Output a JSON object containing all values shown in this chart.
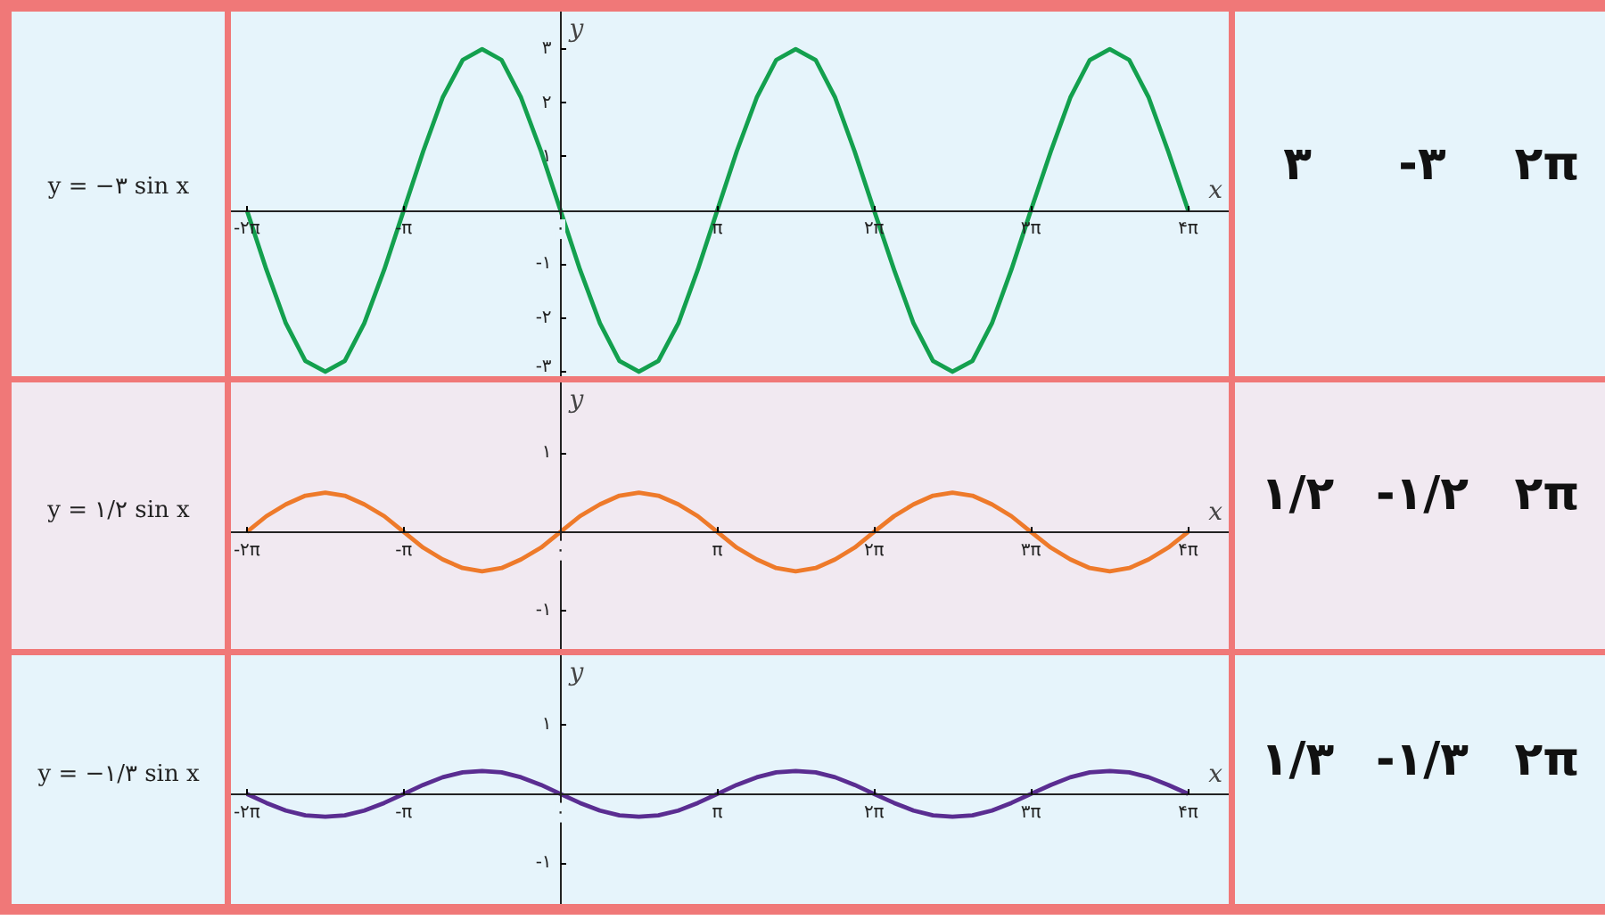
{
  "chart_data": [
    {
      "type": "line",
      "title": "y = −۳ sin x",
      "xlabel": "x",
      "ylabel": "y",
      "x": [
        -6.28,
        -5.89,
        -5.5,
        -5.11,
        -4.71,
        -4.32,
        -3.93,
        -3.53,
        -3.14,
        -2.75,
        -2.36,
        -1.96,
        -1.57,
        -1.18,
        -0.79,
        -0.39,
        0,
        0.39,
        0.79,
        1.18,
        1.57,
        1.96,
        2.36,
        2.75,
        3.14,
        3.53,
        3.93,
        4.32,
        4.71,
        5.11,
        5.5,
        5.89,
        6.28,
        6.68,
        7.07,
        7.46,
        7.85,
        8.25,
        8.64,
        9.03,
        9.42,
        9.82,
        10.21,
        10.6,
        11.0,
        11.39,
        11.78,
        12.17,
        12.57
      ],
      "series": [
        {
          "color": "#13a04e",
          "values": [
            0,
            -1.1,
            -2.1,
            -2.8,
            -3,
            -2.8,
            -2.1,
            -1.1,
            0,
            1.1,
            2.1,
            2.8,
            3,
            2.8,
            2.1,
            1.1,
            0,
            -1.1,
            -2.1,
            -2.8,
            -3,
            -2.8,
            -2.1,
            -1.1,
            0,
            1.1,
            2.1,
            2.8,
            3,
            2.8,
            2.1,
            1.1,
            0,
            -1.1,
            -2.1,
            -2.8,
            -3,
            -2.8,
            -2.1,
            -1.1,
            0,
            1.1,
            2.1,
            2.8,
            3,
            2.8,
            2.1,
            1.1,
            0
          ]
        }
      ],
      "xlim": [
        -6.6,
        13.4
      ],
      "ylim": [
        -3.1,
        3.7
      ],
      "xticks": [
        {
          "value": -6.28,
          "label": "-۲π"
        },
        {
          "value": -3.14,
          "label": "-π"
        },
        {
          "value": 0,
          "label": "۰"
        },
        {
          "value": 3.14,
          "label": "π"
        },
        {
          "value": 6.28,
          "label": "۲π"
        },
        {
          "value": 9.42,
          "label": "۳π"
        },
        {
          "value": 12.57,
          "label": "۴π"
        }
      ],
      "yticks": [
        {
          "value": -3,
          "label": "-۳"
        },
        {
          "value": -2,
          "label": "-۲"
        },
        {
          "value": -1,
          "label": "-۱"
        },
        {
          "value": 1,
          "label": "۱"
        },
        {
          "value": 2,
          "label": "۲"
        },
        {
          "value": 3,
          "label": "۳"
        }
      ]
    },
    {
      "type": "other",
      "annotations": [
        "۳",
        "-۳",
        "۲π"
      ]
    },
    {
      "type": "line",
      "title": "y = ۱/۲ sin x",
      "xlabel": "x",
      "ylabel": "y",
      "x": [
        -6.28,
        -5.89,
        -5.5,
        -5.11,
        -4.71,
        -4.32,
        -3.93,
        -3.53,
        -3.14,
        -2.75,
        -2.36,
        -1.96,
        -1.57,
        -1.18,
        -0.79,
        -0.39,
        0,
        0.39,
        0.79,
        1.18,
        1.57,
        1.96,
        2.36,
        2.75,
        3.14,
        3.53,
        3.93,
        4.32,
        4.71,
        5.11,
        5.5,
        5.89,
        6.28,
        6.68,
        7.07,
        7.46,
        7.85,
        8.25,
        8.64,
        9.03,
        9.42,
        9.82,
        10.21,
        10.6,
        11.0,
        11.39,
        11.78,
        12.17,
        12.57
      ],
      "series": [
        {
          "color": "#ee7a2a",
          "values": [
            0,
            0.2,
            0.35,
            0.46,
            0.5,
            0.46,
            0.35,
            0.2,
            0,
            -0.2,
            -0.35,
            -0.46,
            -0.5,
            -0.46,
            -0.35,
            -0.2,
            0,
            0.2,
            0.35,
            0.46,
            0.5,
            0.46,
            0.35,
            0.2,
            0,
            -0.2,
            -0.35,
            -0.46,
            -0.5,
            -0.46,
            -0.35,
            -0.2,
            0,
            0.2,
            0.35,
            0.46,
            0.5,
            0.46,
            0.35,
            0.2,
            0,
            -0.2,
            -0.35,
            -0.46,
            -0.5,
            -0.46,
            -0.35,
            -0.2,
            0
          ]
        }
      ],
      "xlim": [
        -6.6,
        13.4
      ],
      "ylim": [
        -1.5,
        1.9
      ],
      "xticks": [
        {
          "value": -6.28,
          "label": "-۲π"
        },
        {
          "value": -3.14,
          "label": "-π"
        },
        {
          "value": 0,
          "label": "۰"
        },
        {
          "value": 3.14,
          "label": "π"
        },
        {
          "value": 6.28,
          "label": "۲π"
        },
        {
          "value": 9.42,
          "label": "۳π"
        },
        {
          "value": 12.57,
          "label": "۴π"
        }
      ],
      "yticks": [
        {
          "value": -1,
          "label": "-۱"
        },
        {
          "value": 1,
          "label": "۱"
        }
      ]
    },
    {
      "type": "other",
      "annotations": [
        "۱/۲",
        "-۱/۲",
        "۲π"
      ]
    },
    {
      "type": "line",
      "title": "y = −۱/۳ sin x",
      "xlabel": "x",
      "ylabel": "y",
      "x": [
        -6.28,
        -5.89,
        -5.5,
        -5.11,
        -4.71,
        -4.32,
        -3.93,
        -3.53,
        -3.14,
        -2.75,
        -2.36,
        -1.96,
        -1.57,
        -1.18,
        -0.79,
        -0.39,
        0,
        0.39,
        0.79,
        1.18,
        1.57,
        1.96,
        2.36,
        2.75,
        3.14,
        3.53,
        3.93,
        4.32,
        4.71,
        5.11,
        5.5,
        5.89,
        6.28,
        6.68,
        7.07,
        7.46,
        7.85,
        8.25,
        8.64,
        9.03,
        9.42,
        9.82,
        10.21,
        10.6,
        11.0,
        11.39,
        11.78,
        12.17,
        12.57
      ],
      "series": [
        {
          "color": "#5a2d91",
          "values": [
            0,
            -0.13,
            -0.24,
            -0.31,
            -0.33,
            -0.31,
            -0.24,
            -0.13,
            0,
            0.13,
            0.24,
            0.31,
            0.33,
            0.31,
            0.24,
            0.13,
            0,
            -0.13,
            -0.24,
            -0.31,
            -0.33,
            -0.31,
            -0.24,
            -0.13,
            0,
            0.13,
            0.24,
            0.31,
            0.33,
            0.31,
            0.24,
            0.13,
            0,
            -0.13,
            -0.24,
            -0.31,
            -0.33,
            -0.31,
            -0.24,
            -0.13,
            0,
            0.13,
            0.24,
            0.31,
            0.33,
            0.31,
            0.24,
            0.13,
            0
          ]
        }
      ],
      "xlim": [
        -6.6,
        13.4
      ],
      "ylim": [
        -1.6,
        2.0
      ],
      "xticks": [
        {
          "value": -6.28,
          "label": "-۲π"
        },
        {
          "value": -3.14,
          "label": "-π"
        },
        {
          "value": 0,
          "label": "۰"
        },
        {
          "value": 3.14,
          "label": "π"
        },
        {
          "value": 6.28,
          "label": "۲π"
        },
        {
          "value": 9.42,
          "label": "۳π"
        },
        {
          "value": 12.57,
          "label": "۴π"
        }
      ],
      "yticks": [
        {
          "value": -1,
          "label": "-۱"
        },
        {
          "value": 1,
          "label": "۱"
        }
      ]
    },
    {
      "type": "other",
      "annotations": [
        "۱/۳",
        "-۱/۳",
        "۲π"
      ]
    }
  ]
}
